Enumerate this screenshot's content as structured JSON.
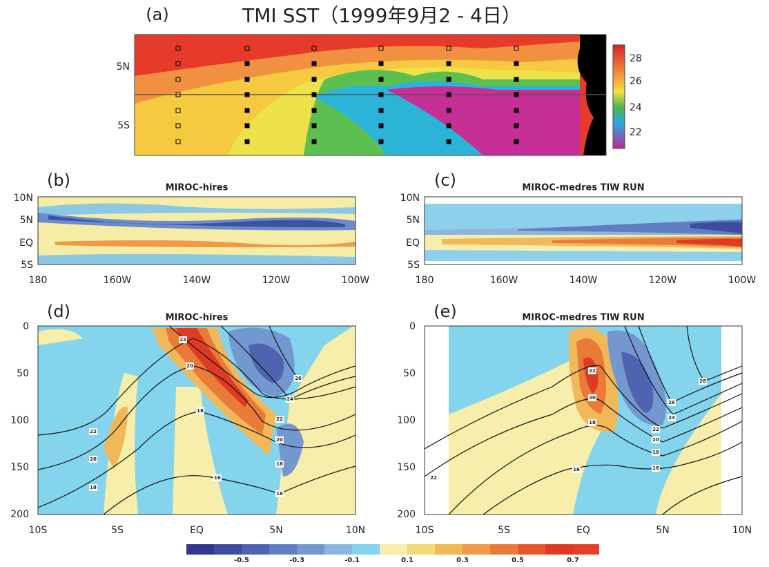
{
  "panels": {
    "a": {
      "label": "(a)",
      "title": "TMI SST（1999年9月2 - 4日）",
      "y_labels": [
        "5N",
        "5S"
      ],
      "colorbar_labels": [
        "28",
        "26",
        "24",
        "22"
      ]
    },
    "b": {
      "label": "(b)",
      "title": "MIROC-hires",
      "y_labels": [
        "10N",
        "5N",
        "EQ",
        "5S"
      ],
      "x_labels": [
        "180",
        "160W",
        "140W",
        "120W",
        "100W"
      ]
    },
    "c": {
      "label": "(c)",
      "title": "MIROC-medres TIW RUN",
      "y_labels": [
        "10N",
        "5N",
        "EQ",
        "5S"
      ],
      "x_labels": [
        "180",
        "160W",
        "140W",
        "120W",
        "100W"
      ]
    },
    "d": {
      "label": "(d)",
      "title": "MIROC-hires",
      "y_labels": [
        "0",
        "50",
        "100",
        "150",
        "200"
      ],
      "x_labels": [
        "10S",
        "5S",
        "EQ",
        "5N",
        "10N"
      ],
      "contour_labels": [
        "22",
        "20",
        "18",
        "22",
        "20",
        "18",
        "16",
        "26",
        "24",
        "22",
        "20",
        "18",
        "16"
      ]
    },
    "e": {
      "label": "(e)",
      "title": "MIROC-medres TIW RUN",
      "y_labels": [
        "0",
        "50",
        "100",
        "150",
        "200"
      ],
      "x_labels": [
        "10S",
        "5S",
        "EQ",
        "5N",
        "10N"
      ],
      "contour_labels": [
        "28",
        "26",
        "24",
        "22",
        "20",
        "18",
        "16",
        "22",
        "20",
        "18",
        "16",
        "22"
      ]
    }
  },
  "colorbar": {
    "labels": [
      "-0.5",
      "-0.3",
      "-0.1",
      "0.1",
      "0.3",
      "0.5",
      "0.7"
    ],
    "colors": [
      "#32368f",
      "#3f4ba0",
      "#4f63b0",
      "#5f7dc0",
      "#7398d0",
      "#8cb6e0",
      "#84d4ee",
      "#f6eeaa",
      "#f3d977",
      "#f1b85a",
      "#ee9a48",
      "#e97a38",
      "#e4582c",
      "#df3b24",
      "#e2402a"
    ]
  }
}
